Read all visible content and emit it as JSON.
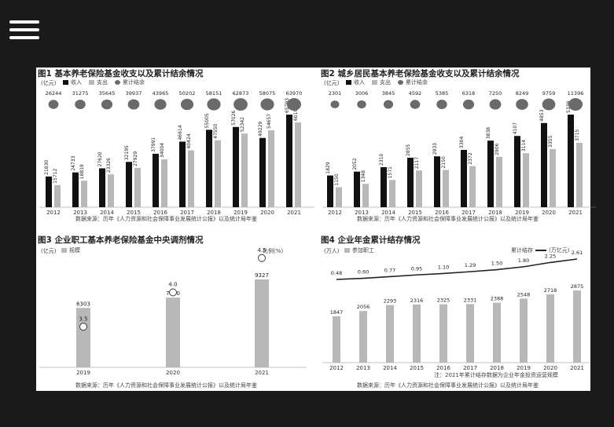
{
  "header": {
    "menu_icon": "hamburger-menu-icon"
  },
  "colors": {
    "black": "#111111",
    "gray": "#b8b8b8",
    "ellipse": "#6a6a6a",
    "line": "#222222"
  },
  "chart_data": [
    {
      "type": "bar",
      "title": "图1 基本养老保险基金收支以及累计结余情况",
      "unit": "(亿元)",
      "legend": [
        "收入",
        "支出",
        "累计结余"
      ],
      "categories": [
        "2012",
        "2013",
        "2014",
        "2015",
        "2016",
        "2017",
        "2018",
        "2019",
        "2020",
        "2021"
      ],
      "series": [
        {
          "name": "收入",
          "values": [
            21830,
            24733,
            27620,
            32195,
            37991,
            46614,
            55005,
            57026,
            49229,
            65793
          ]
        },
        {
          "name": "支出",
          "values": [
            15712,
            18819,
            23326,
            27929,
            34004,
            40424,
            47550,
            52342,
            54657,
            60197
          ]
        }
      ],
      "accumulated": {
        "name": "累计结余",
        "values": [
          26244,
          31275,
          35645,
          39937,
          43965,
          50202,
          58151,
          62873,
          58075,
          63970
        ]
      },
      "source": "数据来源：历年《人力资源和社会保障事业发展统计公报》以及统计局年鉴"
    },
    {
      "type": "bar",
      "title": "图2 城乡居民基本养老保险基金收支以及累计结余情况",
      "unit": "(亿元)",
      "legend": [
        "收入",
        "支出",
        "累计结余"
      ],
      "categories": [
        "2012",
        "2013",
        "2014",
        "2015",
        "2016",
        "2017",
        "2018",
        "2019",
        "2020",
        "2021"
      ],
      "series": [
        {
          "name": "收入",
          "values": [
            1829,
            2052,
            2310,
            2855,
            2933,
            3304,
            3838,
            4107,
            4853,
            5339
          ]
        },
        {
          "name": "支出",
          "values": [
            1150,
            1348,
            1571,
            2117,
            2150,
            2372,
            2906,
            3114,
            3355,
            3715
          ]
        }
      ],
      "accumulated": {
        "name": "累计结余",
        "values": [
          2301,
          3006,
          3845,
          4592,
          5385,
          6318,
          7250,
          8249,
          9759,
          11396
        ]
      },
      "source": "数据来源：历年《人力资源和社会保障事业发展统计公报》以及统计局年鉴"
    },
    {
      "type": "bar",
      "title": "图3 企业职工基本养老保险基金中央调剂情况",
      "unit": "(亿元)",
      "legend": [
        "规模"
      ],
      "right_unit": "比例(%)",
      "categories": [
        "2019",
        "2020",
        "2021"
      ],
      "series": [
        {
          "name": "规模",
          "values": [
            6303,
            7400,
            9327
          ]
        }
      ],
      "ratio": {
        "name": "比例",
        "values": [
          "3.5",
          "4.0",
          "4.5"
        ]
      },
      "source": "数据来源：历年《人力资源和社会保障事业发展统计公报》以及统计局年鉴"
    },
    {
      "type": "bar",
      "title": "图4 企业年金累计结存情况",
      "unit": "(万人)",
      "legend": [
        "参加职工"
      ],
      "line_legend": "累计结存",
      "right_unit": "(万亿元)",
      "categories": [
        "2012",
        "2013",
        "2014",
        "2015",
        "2016",
        "2017",
        "2018",
        "2019",
        "2020",
        "2021"
      ],
      "series": [
        {
          "name": "参加职工",
          "values": [
            1847,
            2056,
            2293,
            2316,
            2325,
            2331,
            2388,
            2548,
            2718,
            2875
          ]
        }
      ],
      "line": {
        "name": "累计结存",
        "values": [
          "0.48",
          "0.60",
          "0.77",
          "0.95",
          "1.10",
          "1.29",
          "1.50",
          "1.80",
          "2.25",
          "2.61"
        ]
      },
      "note": "注：2021年累计结存数据为企业年金投资运营规模",
      "source": "数据来源：历年《人力资源和社会保障事业发展统计公报》以及统计局年鉴"
    }
  ]
}
